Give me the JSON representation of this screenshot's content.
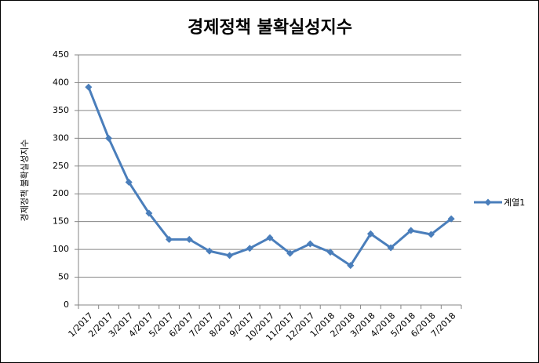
{
  "chart_data": {
    "type": "line",
    "title": "경제정책 불확실성지수",
    "y_label": "경제정책 불확실성지수",
    "categories": [
      "1/2017",
      "2/2017",
      "3/2017",
      "4/2017",
      "5/2017",
      "6/2017",
      "7/2017",
      "8/2017",
      "9/2017",
      "10/2017",
      "11/2017",
      "12/2017",
      "1/2018",
      "2/2018",
      "3/2018",
      "4/2018",
      "5/2018",
      "6/2018",
      "7/2018"
    ],
    "series": [
      {
        "name": "계열1",
        "color": "#4a7ebb",
        "values": [
          392,
          300,
          221,
          165,
          118,
          118,
          97,
          89,
          102,
          121,
          93,
          110,
          95,
          71,
          128,
          103,
          134,
          127,
          155
        ]
      }
    ],
    "ylim": [
      0,
      450
    ],
    "yticks": [
      0,
      50,
      100,
      150,
      200,
      250,
      300,
      350,
      400,
      450
    ],
    "grid": true,
    "legend": "right"
  }
}
